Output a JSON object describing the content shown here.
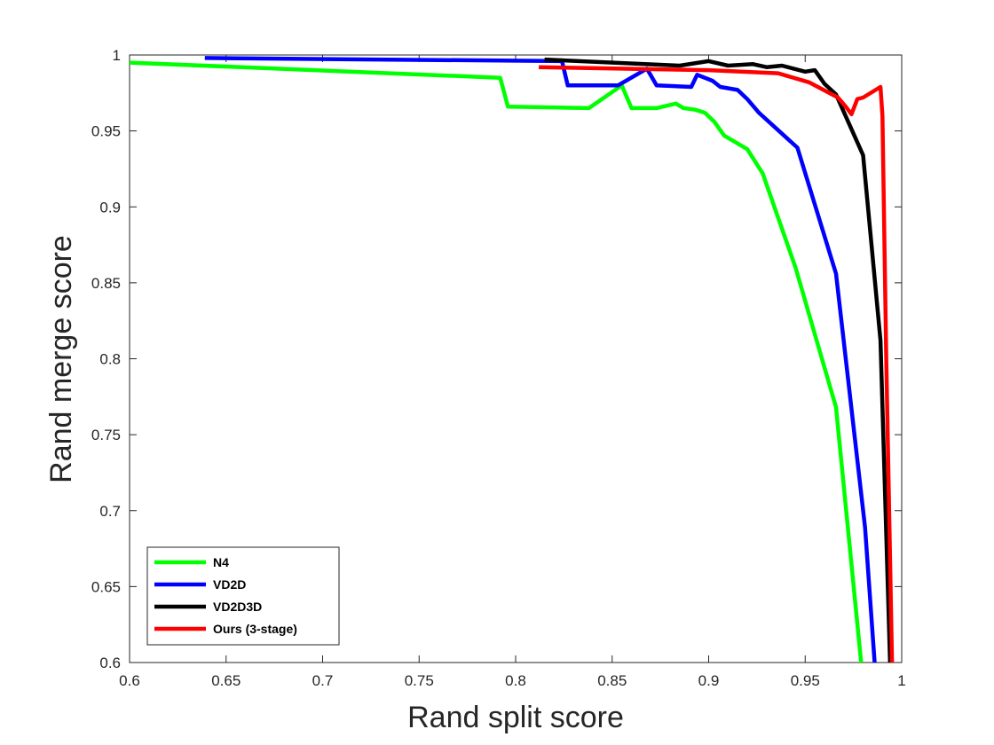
{
  "chart_data": {
    "type": "line",
    "title": "",
    "xlabel": "Rand split score",
    "ylabel": "Rand merge score",
    "xlim": [
      0.6,
      1.0
    ],
    "ylim": [
      0.6,
      1.0
    ],
    "xticks": [
      "0.6",
      "0.65",
      "0.7",
      "0.75",
      "0.8",
      "0.85",
      "0.9",
      "0.95",
      "1"
    ],
    "yticks": [
      "0.6",
      "0.65",
      "0.7",
      "0.75",
      "0.8",
      "0.85",
      "0.9",
      "0.95",
      "1"
    ],
    "grid": false,
    "legend_position": "bottom-left",
    "series": [
      {
        "name": "N4",
        "color": "#00ff00",
        "points": [
          [
            0.6,
            0.995
          ],
          [
            0.792,
            0.985
          ],
          [
            0.796,
            0.966
          ],
          [
            0.838,
            0.965
          ],
          [
            0.855,
            0.98
          ],
          [
            0.86,
            0.965
          ],
          [
            0.873,
            0.965
          ],
          [
            0.883,
            0.968
          ],
          [
            0.887,
            0.965
          ],
          [
            0.893,
            0.964
          ],
          [
            0.898,
            0.962
          ],
          [
            0.903,
            0.956
          ],
          [
            0.908,
            0.947
          ],
          [
            0.92,
            0.938
          ],
          [
            0.928,
            0.922
          ],
          [
            0.945,
            0.86
          ],
          [
            0.966,
            0.768
          ],
          [
            0.979,
            0.6
          ]
        ]
      },
      {
        "name": "VD2D",
        "color": "#0000ff",
        "points": [
          [
            0.639,
            0.998
          ],
          [
            0.824,
            0.996
          ],
          [
            0.827,
            0.98
          ],
          [
            0.853,
            0.98
          ],
          [
            0.868,
            0.991
          ],
          [
            0.873,
            0.98
          ],
          [
            0.891,
            0.979
          ],
          [
            0.894,
            0.987
          ],
          [
            0.902,
            0.983
          ],
          [
            0.906,
            0.979
          ],
          [
            0.915,
            0.977
          ],
          [
            0.92,
            0.971
          ],
          [
            0.926,
            0.962
          ],
          [
            0.946,
            0.939
          ],
          [
            0.966,
            0.856
          ],
          [
            0.981,
            0.689
          ],
          [
            0.986,
            0.6
          ]
        ]
      },
      {
        "name": "VD2D3D",
        "color": "#000000",
        "points": [
          [
            0.815,
            0.997
          ],
          [
            0.885,
            0.993
          ],
          [
            0.9,
            0.996
          ],
          [
            0.91,
            0.993
          ],
          [
            0.923,
            0.994
          ],
          [
            0.93,
            0.992
          ],
          [
            0.938,
            0.993
          ],
          [
            0.95,
            0.989
          ],
          [
            0.955,
            0.99
          ],
          [
            0.96,
            0.981
          ],
          [
            0.966,
            0.974
          ],
          [
            0.98,
            0.934
          ],
          [
            0.989,
            0.812
          ],
          [
            0.994,
            0.6
          ]
        ]
      },
      {
        "name": "Ours (3-stage)",
        "color": "#ff0000",
        "points": [
          [
            0.812,
            0.992
          ],
          [
            0.9,
            0.99
          ],
          [
            0.936,
            0.988
          ],
          [
            0.952,
            0.982
          ],
          [
            0.967,
            0.972
          ],
          [
            0.971,
            0.966
          ],
          [
            0.974,
            0.961
          ],
          [
            0.977,
            0.971
          ],
          [
            0.98,
            0.972
          ],
          [
            0.989,
            0.979
          ],
          [
            0.99,
            0.96
          ],
          [
            0.992,
            0.8
          ],
          [
            0.995,
            0.6
          ]
        ]
      }
    ]
  }
}
